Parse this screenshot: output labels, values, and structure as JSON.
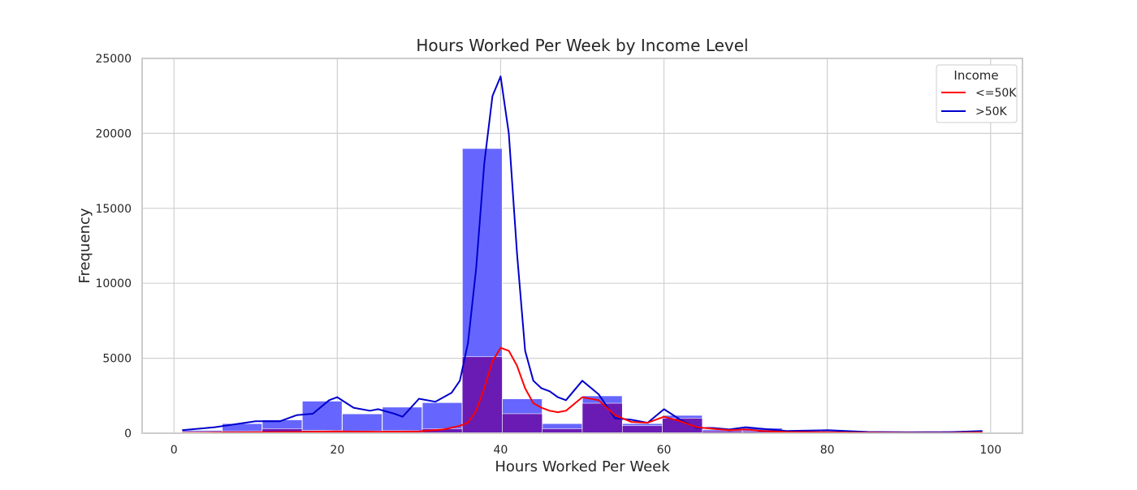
{
  "chart_data": {
    "type": "bar",
    "title": "Hours Worked Per Week by Income Level",
    "xlabel": "Hours Worked Per Week",
    "ylabel": "Frequency",
    "xlim": [
      -3.9,
      103.9
    ],
    "ylim": [
      0,
      25000
    ],
    "xticks": [
      0,
      20,
      40,
      60,
      80,
      100
    ],
    "yticks": [
      0,
      5000,
      10000,
      15000,
      20000,
      25000
    ],
    "grid": true,
    "bin_edges": [
      1,
      5.9,
      10.8,
      15.7,
      20.6,
      25.5,
      30.4,
      35.3,
      40.2,
      45.1,
      50.0,
      54.9,
      59.8,
      64.7,
      69.6,
      74.5,
      79.4,
      84.3,
      89.2,
      94.1,
      99.0
    ],
    "legend": {
      "title": "Income",
      "position": "top-right",
      "entries": [
        "<=50K",
        ">50K"
      ]
    },
    "series": [
      {
        "name": "<=50K",
        "color": "#ff0000",
        "bar_color": "#6a1bb4",
        "counts": [
          100,
          150,
          300,
          180,
          150,
          170,
          300,
          5100,
          1300,
          300,
          2000,
          500,
          1000,
          150,
          120,
          30,
          80,
          20,
          20,
          80
        ],
        "kde_x": [
          1,
          5,
          10,
          15,
          20,
          25,
          30,
          33,
          35,
          36,
          37,
          38,
          39,
          40,
          41,
          42,
          43,
          44,
          45,
          46,
          47,
          48,
          50,
          52,
          54,
          56,
          58,
          60,
          62,
          64,
          66,
          68,
          70,
          72,
          75,
          80,
          85,
          90,
          95,
          99
        ],
        "kde_y": [
          20,
          40,
          60,
          80,
          120,
          100,
          120,
          250,
          500,
          700,
          1500,
          3000,
          4800,
          5700,
          5500,
          4500,
          3000,
          2000,
          1700,
          1500,
          1400,
          1500,
          2400,
          2200,
          1200,
          750,
          700,
          1100,
          800,
          400,
          300,
          200,
          250,
          150,
          80,
          60,
          30,
          20,
          20,
          60
        ]
      },
      {
        "name": ">50K",
        "color": "#0000cc",
        "bar_color": "#6666ff",
        "counts": [
          200,
          650,
          900,
          2150,
          1300,
          1750,
          2050,
          19000,
          2300,
          650,
          2500,
          650,
          1200,
          250,
          350,
          100,
          150,
          50,
          50,
          150
        ],
        "kde_x": [
          1,
          5,
          10,
          13,
          15,
          17,
          19,
          20,
          22,
          24,
          25,
          27,
          28,
          30,
          32,
          34,
          35,
          36,
          37,
          38,
          39,
          40,
          41,
          42,
          43,
          44,
          45,
          46,
          47,
          48,
          50,
          52,
          54,
          56,
          58,
          60,
          62,
          64,
          66,
          68,
          70,
          72,
          75,
          80,
          85,
          90,
          95,
          99
        ],
        "kde_y": [
          200,
          400,
          800,
          800,
          1200,
          1300,
          2200,
          2400,
          1700,
          1500,
          1600,
          1300,
          1100,
          2300,
          2100,
          2700,
          3500,
          6000,
          11000,
          18000,
          22500,
          23800,
          20000,
          12000,
          5500,
          3500,
          3000,
          2800,
          2400,
          2200,
          3500,
          2600,
          1000,
          900,
          700,
          1600,
          900,
          350,
          350,
          250,
          400,
          300,
          150,
          200,
          80,
          60,
          70,
          150
        ]
      }
    ]
  },
  "colors": {
    "background": "#ffffff",
    "grid": "#d0d0d0",
    "frame": "#cccccc",
    "overlap": "#6a1bb4"
  }
}
